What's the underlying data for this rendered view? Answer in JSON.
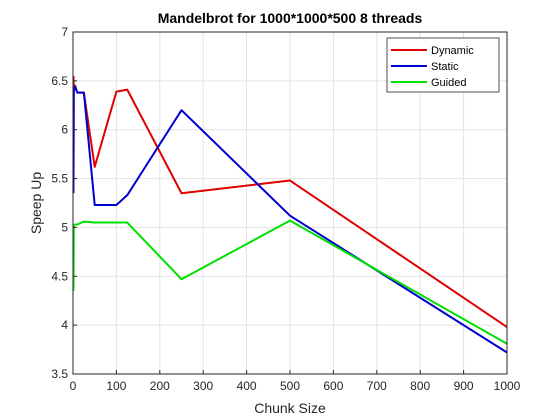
{
  "chart_data": {
    "type": "line",
    "title": "Mandelbrot for 1000*1000*500 8 threads",
    "xlabel": "Chunk Size",
    "ylabel": "Speep Up",
    "xlim": [
      0,
      1000
    ],
    "ylim": [
      3.5,
      7
    ],
    "x_ticks": [
      "0",
      "100",
      "200",
      "300",
      "400",
      "500",
      "600",
      "700",
      "800",
      "900",
      "1000"
    ],
    "y_ticks": [
      "3.5",
      "4",
      "4.5",
      "5",
      "5.5",
      "6",
      "6.5",
      "7"
    ],
    "grid": true,
    "legend_position": "top-right",
    "series": [
      {
        "name": "Dynamic",
        "color": "#e00000",
        "points": [
          [
            1,
            6.55
          ],
          [
            2,
            6.4
          ],
          [
            5,
            6.45
          ],
          [
            10,
            6.38
          ],
          [
            25,
            6.38
          ],
          [
            50,
            5.62
          ],
          [
            100,
            6.39
          ],
          [
            125,
            6.41
          ],
          [
            250,
            5.35
          ],
          [
            500,
            5.48
          ],
          [
            1000,
            3.98
          ]
        ]
      },
      {
        "name": "Static",
        "color": "#0000d0",
        "points": [
          [
            1,
            5.35
          ],
          [
            2,
            6.42
          ],
          [
            5,
            6.44
          ],
          [
            10,
            6.38
          ],
          [
            25,
            6.38
          ],
          [
            50,
            5.23
          ],
          [
            100,
            5.23
          ],
          [
            125,
            5.33
          ],
          [
            250,
            6.2
          ],
          [
            500,
            5.12
          ],
          [
            1000,
            3.72
          ]
        ]
      },
      {
        "name": "Guided",
        "color": "#00e000",
        "points": [
          [
            1,
            4.35
          ],
          [
            2,
            5.02
          ],
          [
            5,
            5.03
          ],
          [
            10,
            5.03
          ],
          [
            25,
            5.06
          ],
          [
            50,
            5.05
          ],
          [
            100,
            5.05
          ],
          [
            125,
            5.05
          ],
          [
            250,
            4.47
          ],
          [
            500,
            5.07
          ],
          [
            1000,
            3.81
          ]
        ]
      }
    ]
  }
}
